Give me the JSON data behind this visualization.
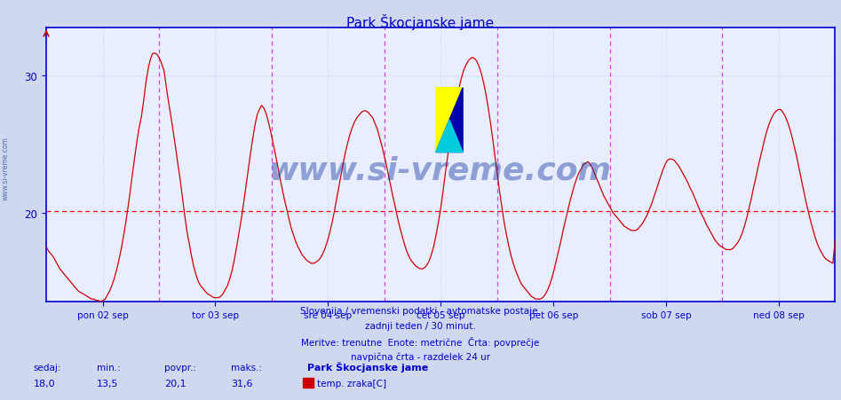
{
  "title": "Park Škocjanske jame",
  "title_color": "#0000cc",
  "bg_color": "#d0d8f0",
  "plot_bg_color": "#e8eeff",
  "grid_color": "#b8c4d8",
  "axis_color": "#0000cc",
  "line_color": "#cc0000",
  "avg_line_color": "#ff0000",
  "avg_line_value": 20.1,
  "vline_color": "#dd44dd",
  "watermark": "www.si-vreme.com",
  "watermark_color": "#4060a0",
  "ylim": [
    13.5,
    33.5
  ],
  "yticks": [
    20,
    30
  ],
  "n_days": 7,
  "xlabel_labels": [
    "pon 02 sep",
    "tor 03 sep",
    "sre 04 sep",
    "čet 05 sep",
    "pet 06 sep",
    "sob 07 sep",
    "ned 08 sep"
  ],
  "footer_line1": "Slovenija / vremenski podatki - avtomatske postaje.",
  "footer_line2": "zadnji teden / 30 minut.",
  "footer_line3": "Meritve: trenutne  Enote: metrične  Črta: povprečje",
  "footer_line4": "navpična črta - razdelek 24 ur",
  "stat_sedaj": "18,0",
  "stat_min": "13,5",
  "stat_povpr": "20,1",
  "stat_maks": "31,6",
  "legend_station": "Park Škocjanske jame",
  "legend_series": "temp. zraka[C]",
  "legend_color": "#cc0000",
  "raw_values": [
    17.5,
    17.2,
    17.0,
    16.8,
    16.5,
    16.2,
    15.9,
    15.7,
    15.5,
    15.3,
    15.1,
    14.9,
    14.7,
    14.5,
    14.3,
    14.2,
    14.1,
    14.0,
    13.9,
    13.8,
    13.7,
    13.7,
    13.6,
    13.6,
    13.5,
    13.6,
    13.7,
    14.0,
    14.3,
    14.7,
    15.2,
    15.8,
    16.5,
    17.3,
    18.2,
    19.2,
    20.3,
    21.5,
    22.8,
    24.0,
    25.2,
    26.2,
    27.0,
    28.2,
    29.5,
    30.5,
    31.2,
    31.6,
    31.6,
    31.5,
    31.2,
    30.8,
    30.3,
    29.1,
    28.0,
    27.0,
    25.9,
    24.8,
    23.6,
    22.5,
    21.2,
    19.9,
    18.7,
    17.8,
    16.9,
    16.1,
    15.5,
    15.0,
    14.7,
    14.5,
    14.3,
    14.1,
    14.0,
    13.9,
    13.8,
    13.8,
    13.8,
    13.9,
    14.1,
    14.4,
    14.7,
    15.2,
    15.8,
    16.6,
    17.5,
    18.5,
    19.5,
    20.6,
    21.8,
    23.0,
    24.2,
    25.3,
    26.3,
    27.1,
    27.5,
    27.8,
    27.6,
    27.2,
    26.6,
    25.9,
    25.1,
    24.3,
    23.5,
    22.6,
    21.8,
    21.0,
    20.3,
    19.6,
    18.9,
    18.4,
    17.9,
    17.5,
    17.2,
    16.9,
    16.7,
    16.5,
    16.4,
    16.3,
    16.3,
    16.4,
    16.5,
    16.7,
    17.0,
    17.4,
    17.9,
    18.5,
    19.2,
    20.0,
    20.9,
    21.8,
    22.7,
    23.6,
    24.4,
    25.1,
    25.7,
    26.2,
    26.6,
    26.9,
    27.1,
    27.3,
    27.4,
    27.4,
    27.3,
    27.1,
    26.9,
    26.5,
    26.1,
    25.5,
    24.9,
    24.2,
    23.5,
    22.7,
    21.9,
    21.1,
    20.4,
    19.6,
    18.9,
    18.3,
    17.7,
    17.2,
    16.8,
    16.5,
    16.3,
    16.1,
    16.0,
    15.9,
    15.9,
    16.0,
    16.2,
    16.5,
    17.0,
    17.6,
    18.4,
    19.3,
    20.3,
    21.5,
    22.8,
    24.0,
    25.2,
    26.3,
    27.3,
    28.2,
    29.0,
    29.7,
    30.3,
    30.7,
    31.0,
    31.2,
    31.3,
    31.2,
    31.0,
    30.6,
    30.1,
    29.4,
    28.6,
    27.6,
    26.5,
    25.3,
    24.0,
    22.8,
    21.5,
    20.4,
    19.3,
    18.4,
    17.6,
    16.9,
    16.3,
    15.8,
    15.4,
    15.0,
    14.7,
    14.5,
    14.3,
    14.1,
    13.9,
    13.8,
    13.7,
    13.7,
    13.7,
    13.8,
    14.0,
    14.3,
    14.7,
    15.2,
    15.8,
    16.5,
    17.2,
    17.9,
    18.7,
    19.4,
    20.1,
    20.8,
    21.4,
    22.0,
    22.5,
    22.9,
    23.2,
    23.5,
    23.6,
    23.7,
    23.5,
    23.2,
    22.8,
    22.4,
    22.0,
    21.6,
    21.2,
    20.9,
    20.6,
    20.3,
    20.0,
    19.8,
    19.6,
    19.4,
    19.2,
    19.0,
    18.9,
    18.8,
    18.7,
    18.7,
    18.7,
    18.8,
    19.0,
    19.2,
    19.5,
    19.8,
    20.2,
    20.6,
    21.1,
    21.6,
    22.1,
    22.6,
    23.1,
    23.5,
    23.8,
    23.9,
    23.9,
    23.8,
    23.6,
    23.4,
    23.1,
    22.8,
    22.5,
    22.2,
    21.8,
    21.5,
    21.1,
    20.7,
    20.3,
    19.9,
    19.6,
    19.2,
    18.9,
    18.6,
    18.3,
    18.0,
    17.8,
    17.6,
    17.5,
    17.4,
    17.3,
    17.3,
    17.3,
    17.4,
    17.6,
    17.8,
    18.1,
    18.5,
    19.0,
    19.6,
    20.3,
    21.0,
    21.8,
    22.5,
    23.3,
    24.0,
    24.7,
    25.4,
    26.0,
    26.5,
    26.9,
    27.2,
    27.4,
    27.5,
    27.5,
    27.3,
    27.0,
    26.6,
    26.1,
    25.5,
    24.8,
    24.1,
    23.3,
    22.5,
    21.7,
    20.9,
    20.2,
    19.5,
    18.9,
    18.3,
    17.8,
    17.4,
    17.1,
    16.8,
    16.6,
    16.5,
    16.4,
    16.3,
    18.0
  ]
}
